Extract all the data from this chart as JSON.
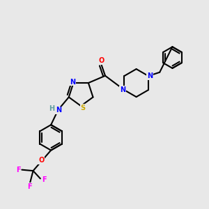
{
  "bg_color": "#e8e8e8",
  "atom_colors": {
    "C": "#000000",
    "N": "#0000ff",
    "O": "#ff0000",
    "S": "#ccaa00",
    "F": "#ff00ff",
    "H": "#5f9ea0"
  },
  "bond_color": "#000000",
  "bond_width": 1.5
}
